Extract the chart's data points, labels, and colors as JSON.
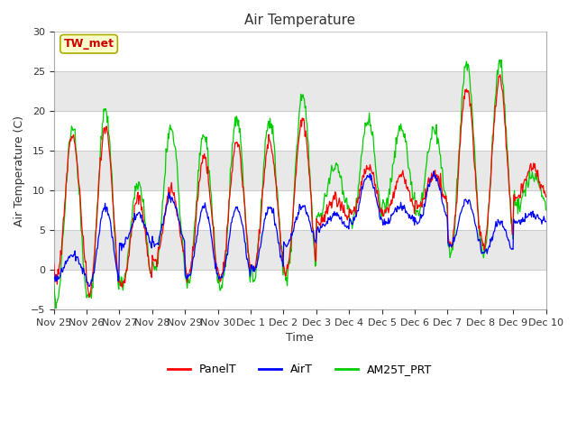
{
  "title": "Air Temperature",
  "ylabel": "Air Temperature (C)",
  "xlabel": "Time",
  "ylim": [
    -5,
    30
  ],
  "yticks": [
    -5,
    0,
    5,
    10,
    15,
    20,
    25,
    30
  ],
  "annotation_text": "TW_met",
  "annotation_color": "#cc0000",
  "annotation_bg": "#ffffcc",
  "fig_bg": "#ffffff",
  "plot_bg": "#ffffff",
  "legend_labels": [
    "PanelT",
    "AirT",
    "AM25T_PRT"
  ],
  "legend_colors": [
    "#ff0000",
    "#0000ff",
    "#00cc00"
  ],
  "x_tick_labels": [
    "Nov 25",
    "Nov 26",
    "Nov 27",
    "Nov 28",
    "Nov 29",
    "Nov 30",
    "Dec 1",
    "Dec 2",
    "Dec 3",
    "Dec 4",
    "Dec 5",
    "Dec 6",
    "Dec 7",
    "Dec 8",
    "Dec 9",
    "Dec 10"
  ],
  "num_days": 15,
  "pts_per_day": 48,
  "band_colors": [
    "#ffffff",
    "#e8e8e8"
  ],
  "grid_color": "#cccccc"
}
